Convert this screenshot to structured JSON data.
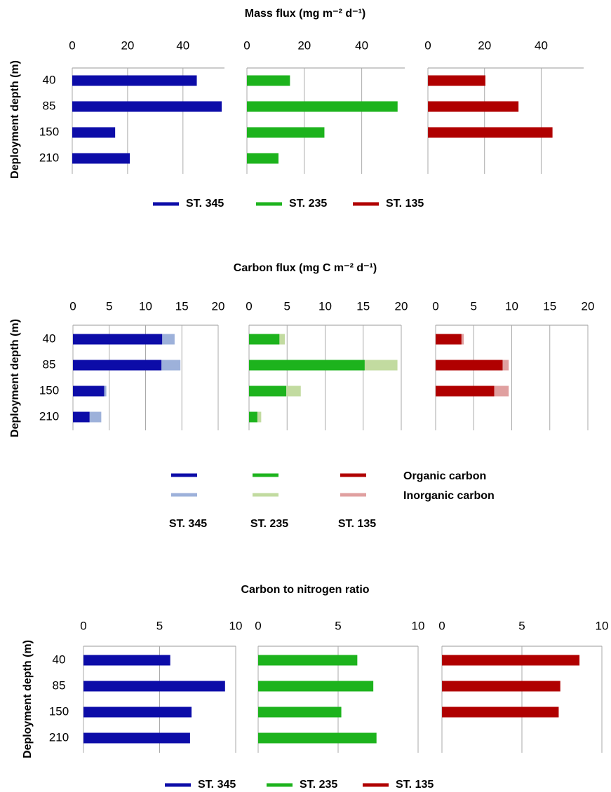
{
  "chart_data": [
    {
      "type": "hbar-panels",
      "title": "Mass flux (mg m⁻² d⁻¹)",
      "ylabel": "Deployment depth (m)",
      "categories": [
        "40",
        "85",
        "150",
        "210"
      ],
      "panels": [
        {
          "name": "ST. 345",
          "color": "#0c0ca8",
          "values": [
            45,
            54,
            15.5,
            20.8
          ],
          "xlim": [
            0,
            55
          ],
          "xticks": [
            0,
            20,
            40
          ]
        },
        {
          "name": "ST. 235",
          "color": "#1db31d",
          "values": [
            15,
            52.5,
            27,
            11
          ],
          "xlim": [
            0,
            55
          ],
          "xticks": [
            0,
            20,
            40
          ]
        },
        {
          "name": "ST. 135",
          "color": "#b00000",
          "values": [
            20.3,
            32,
            44,
            null
          ],
          "xlim": [
            0,
            55
          ],
          "xticks": [
            0,
            20,
            40
          ]
        }
      ]
    },
    {
      "type": "stacked-hbar-panels",
      "title": "Carbon flux (mg C m⁻² d⁻¹)",
      "ylabel": "Deployment depth (m)",
      "categories": [
        "40",
        "85",
        "150",
        "210"
      ],
      "components": [
        {
          "name": "Organic carbon"
        },
        {
          "name": "Inorganic carbon"
        }
      ],
      "panels": [
        {
          "name": "ST. 345",
          "xlim": [
            0,
            20
          ],
          "xticks": [
            0,
            5,
            10,
            15,
            20
          ],
          "series": [
            {
              "color": "#0c0ca8",
              "values": [
                12.3,
                12.2,
                4.3,
                2.3
              ]
            },
            {
              "color": "#9db1da",
              "values": [
                1.7,
                2.6,
                0.3,
                1.6
              ]
            }
          ]
        },
        {
          "name": "ST. 235",
          "xlim": [
            0,
            20
          ],
          "xticks": [
            0,
            5,
            10,
            15,
            20
          ],
          "series": [
            {
              "color": "#1db31d",
              "values": [
                4.0,
                15.2,
                4.9,
                1.1
              ]
            },
            {
              "color": "#c2dba0",
              "values": [
                0.7,
                4.3,
                1.9,
                0.5
              ]
            }
          ]
        },
        {
          "name": "ST. 135",
          "xlim": [
            0,
            20
          ],
          "xticks": [
            0,
            5,
            10,
            15,
            20
          ],
          "series": [
            {
              "color": "#b00000",
              "values": [
                3.4,
                8.8,
                7.7,
                null
              ]
            },
            {
              "color": "#e0a0a0",
              "values": [
                0.3,
                0.8,
                1.9,
                null
              ]
            }
          ]
        }
      ]
    },
    {
      "type": "hbar-panels",
      "title": "Carbon to nitrogen ratio",
      "ylabel": "Deployment depth (m)",
      "categories": [
        "40",
        "85",
        "150",
        "210"
      ],
      "panels": [
        {
          "name": "ST. 345",
          "color": "#0c0ca8",
          "values": [
            5.7,
            9.3,
            7.1,
            7.0
          ],
          "xlim": [
            0,
            10
          ],
          "xticks": [
            0,
            5,
            10
          ]
        },
        {
          "name": "ST. 235",
          "color": "#1db31d",
          "values": [
            6.2,
            7.2,
            5.2,
            7.4
          ],
          "xlim": [
            0,
            10
          ],
          "xticks": [
            0,
            5,
            10
          ]
        },
        {
          "name": "ST. 135",
          "color": "#b00000",
          "values": [
            8.6,
            7.4,
            7.3,
            null
          ],
          "xlim": [
            0,
            10
          ],
          "xticks": [
            0,
            5,
            10
          ]
        }
      ]
    }
  ]
}
